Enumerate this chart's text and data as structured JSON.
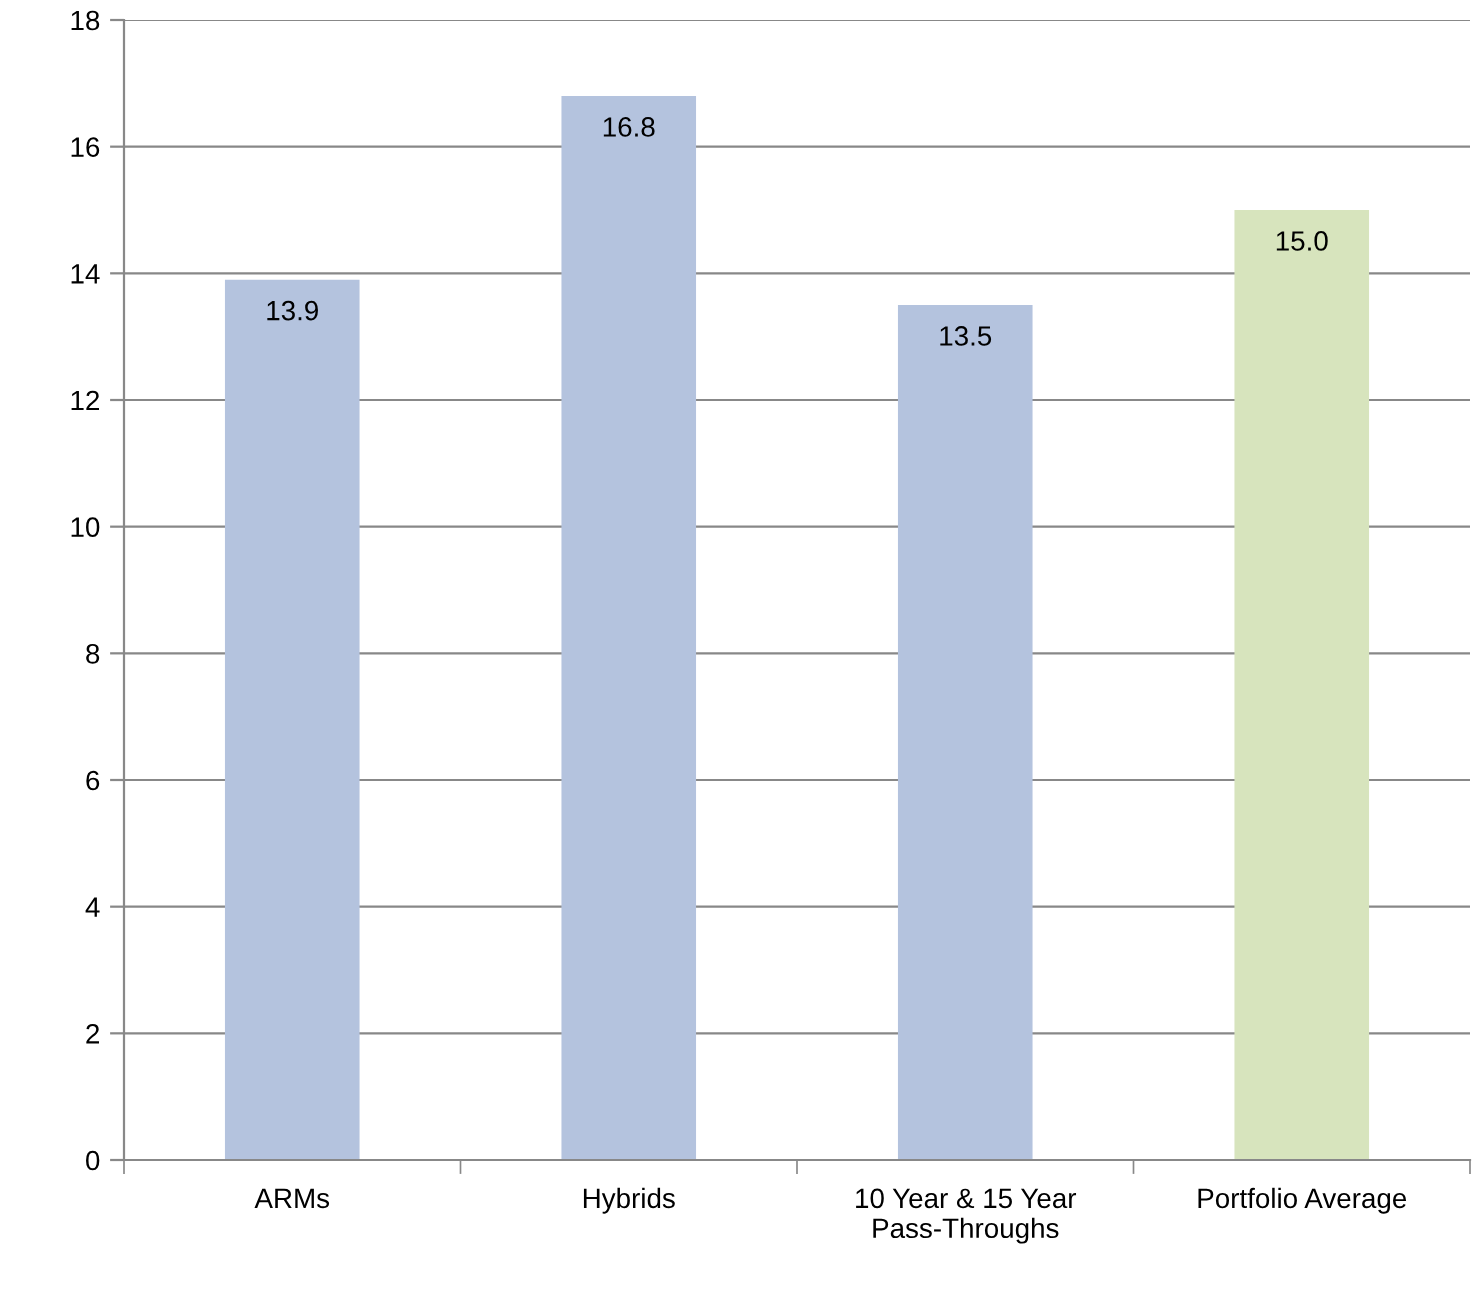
{
  "chart_data": {
    "type": "bar",
    "categories": [
      "ARMs",
      "Hybrids",
      "10 Year & 15 Year\nPass-Throughs",
      "Portfolio Average"
    ],
    "values": [
      13.9,
      16.8,
      13.5,
      15.0
    ],
    "value_labels": [
      "13.9",
      "16.8",
      "13.5",
      "15.0"
    ],
    "colors": [
      "#b4c3de",
      "#b4c3de",
      "#b4c3de",
      "#d7e4bd"
    ],
    "ylim": [
      0,
      18
    ],
    "yticks": [
      0,
      2,
      4,
      6,
      8,
      10,
      12,
      14,
      16,
      18
    ],
    "grid": "y",
    "legend": false
  }
}
